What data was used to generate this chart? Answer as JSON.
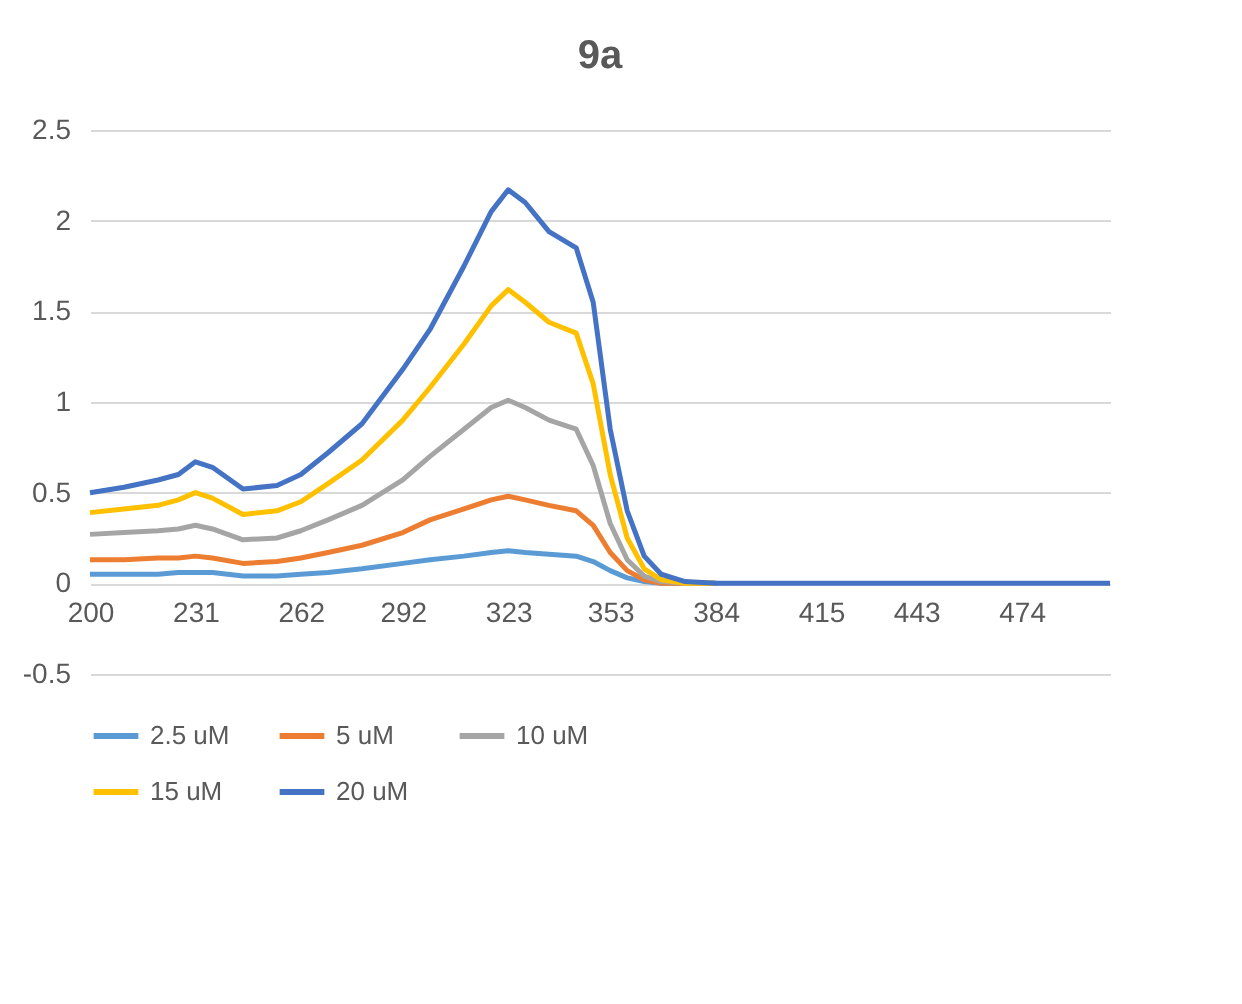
{
  "chart_data": {
    "type": "line",
    "title": "9a",
    "x": [
      200,
      210,
      220,
      226,
      231,
      236,
      245,
      255,
      262,
      270,
      280,
      292,
      300,
      310,
      318,
      323,
      328,
      335,
      343,
      348,
      353,
      358,
      363,
      368,
      375,
      384,
      400,
      500
    ],
    "series": [
      {
        "name": "2.5 uM",
        "color": "#5b9bd5",
        "values": [
          0.05,
          0.05,
          0.05,
          0.06,
          0.06,
          0.06,
          0.04,
          0.04,
          0.05,
          0.06,
          0.08,
          0.11,
          0.13,
          0.15,
          0.17,
          0.18,
          0.17,
          0.16,
          0.15,
          0.12,
          0.07,
          0.03,
          0.01,
          0,
          0,
          0,
          null,
          null
        ]
      },
      {
        "name": "5 uM",
        "color": "#ed7d31",
        "values": [
          0.13,
          0.13,
          0.14,
          0.14,
          0.15,
          0.14,
          0.11,
          0.12,
          0.14,
          0.17,
          0.21,
          0.28,
          0.35,
          0.41,
          0.46,
          0.48,
          0.46,
          0.43,
          0.4,
          0.32,
          0.17,
          0.07,
          0.02,
          0,
          0,
          0,
          null,
          null
        ]
      },
      {
        "name": "10 uM",
        "color": "#a5a5a5",
        "values": [
          0.27,
          0.28,
          0.29,
          0.3,
          0.32,
          0.3,
          0.24,
          0.25,
          0.29,
          0.35,
          0.43,
          0.57,
          0.7,
          0.85,
          0.97,
          1.01,
          0.97,
          0.9,
          0.85,
          0.65,
          0.33,
          0.13,
          0.04,
          0.01,
          0,
          0,
          null,
          null
        ]
      },
      {
        "name": "15 uM",
        "color": "#ffc000",
        "values": [
          0.39,
          0.41,
          0.43,
          0.46,
          0.5,
          0.47,
          0.38,
          0.4,
          0.45,
          0.55,
          0.68,
          0.9,
          1.08,
          1.32,
          1.53,
          1.62,
          1.55,
          1.44,
          1.38,
          1.1,
          0.6,
          0.25,
          0.08,
          0.02,
          0,
          0,
          null,
          null
        ]
      },
      {
        "name": "20 uM",
        "color": "#4472c4",
        "values": [
          0.5,
          0.53,
          0.57,
          0.6,
          0.67,
          0.64,
          0.52,
          0.54,
          0.6,
          0.72,
          0.88,
          1.18,
          1.4,
          1.75,
          2.05,
          2.17,
          2.1,
          1.94,
          1.85,
          1.55,
          0.85,
          0.4,
          0.15,
          0.05,
          0.01,
          0,
          0,
          0
        ]
      }
    ],
    "xlim": [
      200,
      500
    ],
    "xticks": [
      200,
      231,
      262,
      292,
      323,
      353,
      384,
      415,
      443,
      474
    ],
    "ylim": [
      -0.5,
      2.5
    ],
    "yticks": [
      -0.5,
      0,
      0.5,
      1,
      1.5,
      2,
      2.5
    ],
    "grid": "y",
    "legend": "bottom",
    "marker": "none",
    "line_style": "solid"
  }
}
